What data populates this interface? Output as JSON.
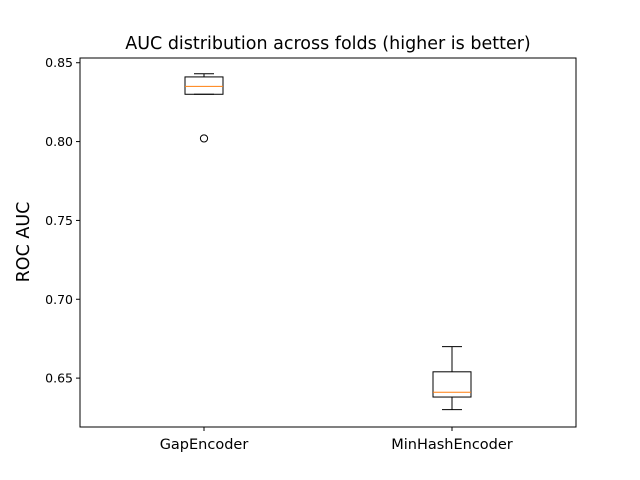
{
  "chart_data": {
    "type": "box",
    "title": "AUC distribution across folds (higher is better)",
    "xlabel": "",
    "ylabel": "ROC AUC",
    "ylim": [
      0.619,
      0.853
    ],
    "yticks": [
      0.65,
      0.7,
      0.75,
      0.8,
      0.85
    ],
    "ytick_labels": [
      "0.65",
      "0.70",
      "0.75",
      "0.80",
      "0.85"
    ],
    "categories": [
      "GapEncoder",
      "MinHashEncoder"
    ],
    "boxes": [
      {
        "name": "GapEncoder",
        "whisker_low": 0.83,
        "q1": 0.83,
        "median": 0.835,
        "q3": 0.841,
        "whisker_high": 0.843,
        "outliers": [
          0.802
        ]
      },
      {
        "name": "MinHashEncoder",
        "whisker_low": 0.63,
        "q1": 0.638,
        "median": 0.641,
        "q3": 0.654,
        "whisker_high": 0.67,
        "outliers": []
      }
    ],
    "grid": false,
    "colors": {
      "box": "#000000",
      "median": "#ff7f0e",
      "background": "#ffffff"
    }
  }
}
